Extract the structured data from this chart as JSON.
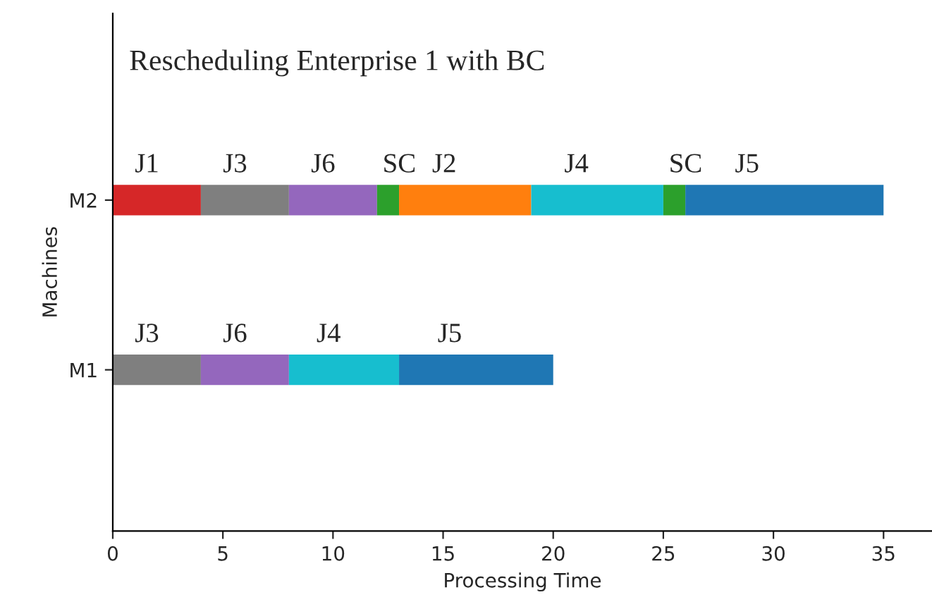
{
  "chart_data": {
    "type": "bar",
    "orientation": "horizontal",
    "stacked": true,
    "title": "Rescheduling Enterprise 1 with BC",
    "xlabel": "Processing Time",
    "ylabel": "Machines",
    "categories": [
      "M2",
      "M1"
    ],
    "series": [
      {
        "colors": [
          "#d62728",
          "#7f7f7f"
        ],
        "values": [
          4,
          4
        ],
        "value_labels": [
          "J1",
          "J3"
        ]
      },
      {
        "colors": [
          "#7f7f7f",
          "#9467bd"
        ],
        "values": [
          4,
          4
        ],
        "value_labels": [
          "J3",
          "J6"
        ]
      },
      {
        "colors": [
          "#9467bd",
          "#17becf"
        ],
        "values": [
          4,
          5
        ],
        "value_labels": [
          "J6",
          "J4"
        ]
      },
      {
        "colors": [
          "#2ca02c",
          "#1f77b4"
        ],
        "values": [
          1,
          7
        ],
        "value_labels": [
          "SC",
          "J5"
        ]
      },
      {
        "colors": [
          "#ff7f0e",
          null
        ],
        "values": [
          6,
          null
        ],
        "value_labels": [
          "J2",
          null
        ]
      },
      {
        "colors": [
          "#17becf",
          null
        ],
        "values": [
          6,
          null
        ],
        "value_labels": [
          "J4",
          null
        ]
      },
      {
        "colors": [
          "#2ca02c",
          null
        ],
        "values": [
          1,
          null
        ],
        "value_labels": [
          "SC",
          null
        ]
      },
      {
        "colors": [
          "#1f77b4",
          null
        ],
        "values": [
          9,
          null
        ],
        "value_labels": [
          "J5",
          null
        ]
      }
    ],
    "xlim": [
      0,
      37.2
    ],
    "xticks": [
      0,
      5,
      10,
      15,
      20,
      25,
      30,
      35
    ],
    "grid": false,
    "legend": false
  }
}
